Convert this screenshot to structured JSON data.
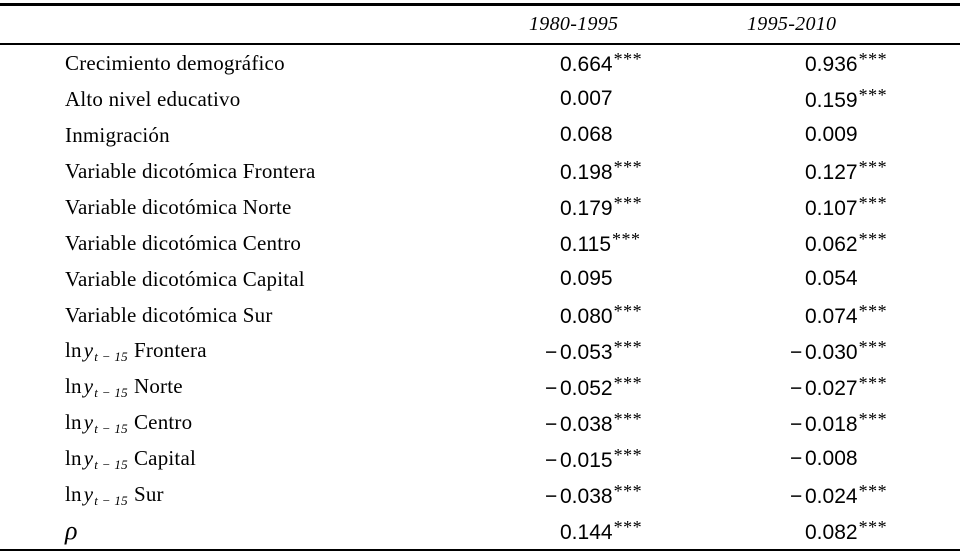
{
  "table": {
    "columns": [
      "1980-1995",
      "1995-2010"
    ],
    "rows": [
      {
        "type": "plain",
        "label": "Crecimiento demográfico",
        "values": [
          {
            "num": "0.664",
            "stars": "***"
          },
          {
            "num": "0.936",
            "stars": "***"
          }
        ]
      },
      {
        "type": "plain",
        "label": "Alto nivel educativo",
        "values": [
          {
            "num": "0.007",
            "stars": ""
          },
          {
            "num": "0.159",
            "stars": "***"
          }
        ]
      },
      {
        "type": "plain",
        "label": "Inmigración",
        "values": [
          {
            "num": "0.068",
            "stars": ""
          },
          {
            "num": "0.009",
            "stars": ""
          }
        ]
      },
      {
        "type": "plain",
        "label": "Variable dicotómica Frontera",
        "values": [
          {
            "num": "0.198",
            "stars": "***"
          },
          {
            "num": "0.127",
            "stars": "***"
          }
        ]
      },
      {
        "type": "plain",
        "label": "Variable dicotómica Norte",
        "values": [
          {
            "num": "0.179",
            "stars": "***"
          },
          {
            "num": "0.107",
            "stars": "***"
          }
        ]
      },
      {
        "type": "plain",
        "label": "Variable dicotómica Centro",
        "values": [
          {
            "num": "0.115",
            "stars": "***"
          },
          {
            "num": "0.062",
            "stars": "***"
          }
        ]
      },
      {
        "type": "plain",
        "label": "Variable dicotómica Capital",
        "values": [
          {
            "num": "0.095",
            "stars": ""
          },
          {
            "num": "0.054",
            "stars": ""
          }
        ]
      },
      {
        "type": "plain",
        "label": "Variable dicotómica Sur",
        "values": [
          {
            "num": "0.080",
            "stars": "***"
          },
          {
            "num": "0.074",
            "stars": "***"
          }
        ]
      },
      {
        "type": "lny",
        "label_prefix": "ln",
        "label_var": "y",
        "label_sub": "t − 15",
        "label_region": "Frontera",
        "values": [
          {
            "num": "−0.053",
            "stars": "***"
          },
          {
            "num": "−0.030",
            "stars": "***"
          }
        ]
      },
      {
        "type": "lny",
        "label_prefix": "ln",
        "label_var": "y",
        "label_sub": "t − 15",
        "label_region": "Norte",
        "values": [
          {
            "num": "−0.052",
            "stars": "***"
          },
          {
            "num": "−0.027",
            "stars": "***"
          }
        ]
      },
      {
        "type": "lny",
        "label_prefix": "ln",
        "label_var": "y",
        "label_sub": "t − 15",
        "label_region": "Centro",
        "values": [
          {
            "num": "−0.038",
            "stars": "***"
          },
          {
            "num": "−0.018",
            "stars": "***"
          }
        ]
      },
      {
        "type": "lny",
        "label_prefix": "ln",
        "label_var": "y",
        "label_sub": "t − 15",
        "label_region": "Capital",
        "values": [
          {
            "num": "−0.015",
            "stars": "***"
          },
          {
            "num": "−0.008",
            "stars": ""
          }
        ]
      },
      {
        "type": "lny",
        "label_prefix": "ln",
        "label_var": "y",
        "label_sub": "t − 15",
        "label_region": "Sur",
        "values": [
          {
            "num": "−0.038",
            "stars": "***"
          },
          {
            "num": "−0.024",
            "stars": "***"
          }
        ]
      },
      {
        "type": "rho",
        "label": "ρ",
        "values": [
          {
            "num": "0.144",
            "stars": "***"
          },
          {
            "num": "0.082",
            "stars": "***"
          }
        ]
      }
    ]
  }
}
